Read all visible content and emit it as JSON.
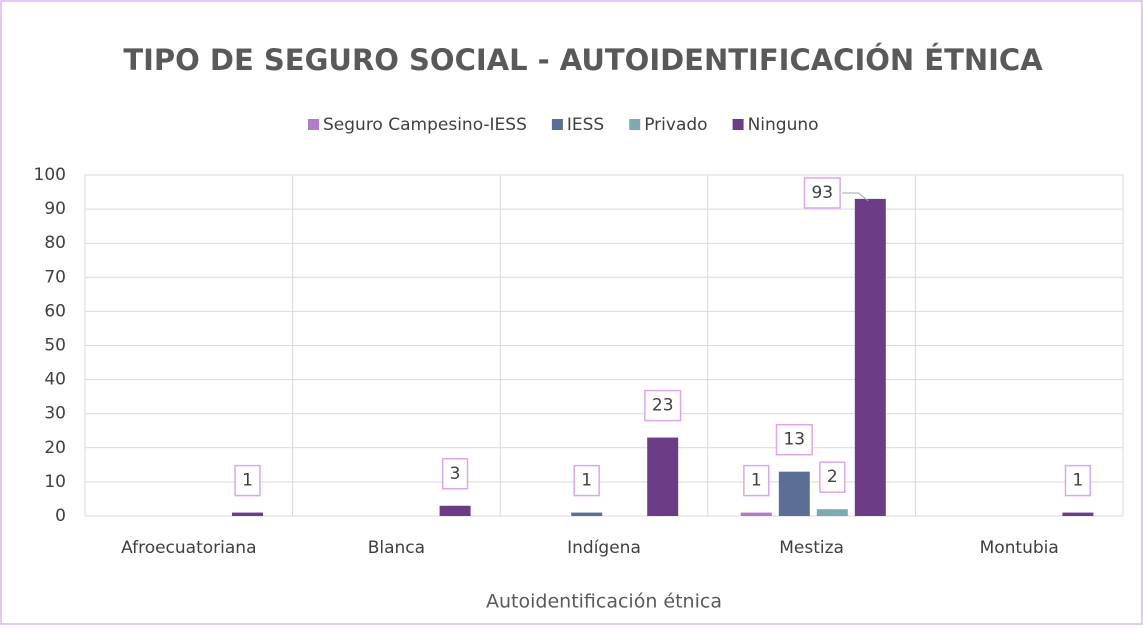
{
  "chart_data": {
    "type": "bar",
    "title": "TIPO DE SEGURO SOCIAL - AUTOIDENTIFICACIÓN ÉTNICA",
    "x_label": "Autoidentificación étnica",
    "categories": [
      "Afroecuatoriana",
      "Blanca",
      "Indígena",
      "Mestiza",
      "Montubia"
    ],
    "series": [
      {
        "name": "Seguro Campesino-IESS",
        "color": "#b07cc6",
        "values": [
          null,
          null,
          null,
          1,
          null
        ]
      },
      {
        "name": "IESS",
        "color": "#5b6f96",
        "values": [
          null,
          null,
          1,
          13,
          null
        ]
      },
      {
        "name": "Privado",
        "color": "#7fa9b0",
        "values": [
          null,
          null,
          null,
          2,
          null
        ]
      },
      {
        "name": "Ninguno",
        "color": "#6b3d87",
        "values": [
          1,
          3,
          23,
          93,
          1
        ]
      }
    ],
    "ylim": [
      0,
      100
    ],
    "yticks": [
      0,
      10,
      20,
      30,
      40,
      50,
      60,
      70,
      80,
      90,
      100
    ],
    "grid": true,
    "legend": "top"
  }
}
